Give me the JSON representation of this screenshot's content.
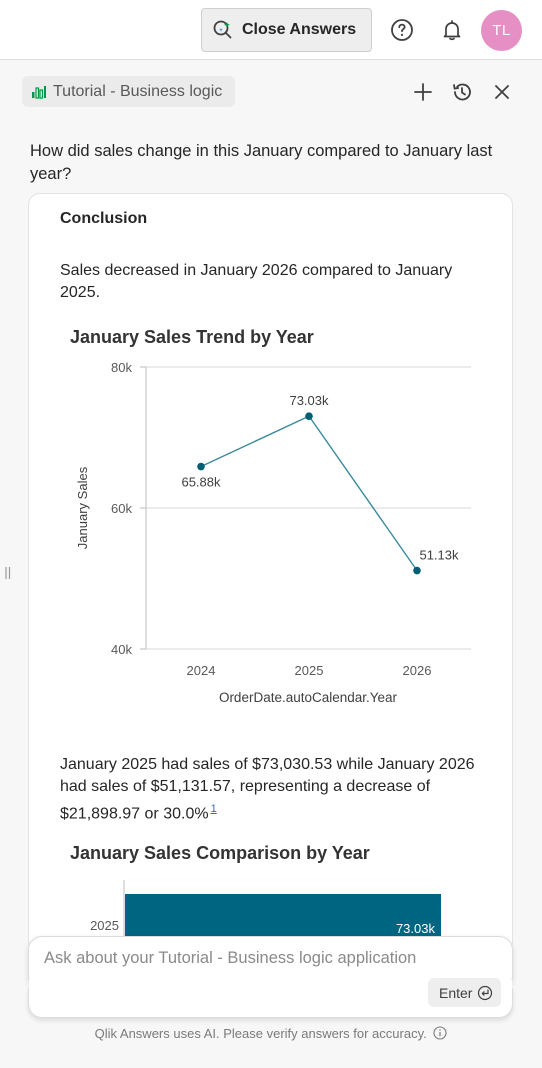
{
  "topbar": {
    "close_answers_label": "Close Answers",
    "avatar_initials": "TL",
    "avatar_color": "#e58fc4"
  },
  "panel": {
    "app_name": "Tutorial - Business logic",
    "icons": [
      "sparkle-search-icon",
      "help-icon",
      "bell-icon",
      "chart-app-icon",
      "plus-icon",
      "history-icon",
      "close-icon",
      "enter-icon",
      "info-icon"
    ]
  },
  "conversation": {
    "question": "How did sales change in this January compared to January last year?",
    "conclusion_heading": "Conclusion",
    "conclusion_text": "Sales decreased in January 2026 compared to January 2025.",
    "detail_text": "January 2025 had sales of $73,030.53 while January 2026 had sales of $51,131.57, representing a decrease of $21,898.97 or 30.0%",
    "citation": "1"
  },
  "chart_data": [
    {
      "type": "line",
      "title": "January Sales Trend by Year",
      "xlabel": "OrderDate.autoCalendar.Year",
      "ylabel": "January Sales",
      "categories": [
        "2024",
        "2025",
        "2026"
      ],
      "values": [
        65880,
        73030,
        51130
      ],
      "data_labels": [
        "65.88k",
        "73.03k",
        "51.13k"
      ],
      "ylim": [
        40000,
        80000
      ],
      "yticks": [
        40000,
        60000,
        80000
      ],
      "ytick_labels": [
        "40k",
        "60k",
        "80k"
      ],
      "grid": true,
      "color": "#3a8a9a",
      "point_color": "#005f73"
    },
    {
      "type": "bar",
      "title": "January Sales Comparison by Year",
      "orientation": "horizontal",
      "categories": [
        "2025"
      ],
      "values": [
        73030
      ],
      "data_labels": [
        "73.03k"
      ],
      "color": "#006580"
    }
  ],
  "input": {
    "placeholder": "Ask about your Tutorial - Business logic application",
    "enter_label": "Enter"
  },
  "footer": {
    "note": "Qlik Answers uses AI. Please verify answers for accuracy."
  }
}
